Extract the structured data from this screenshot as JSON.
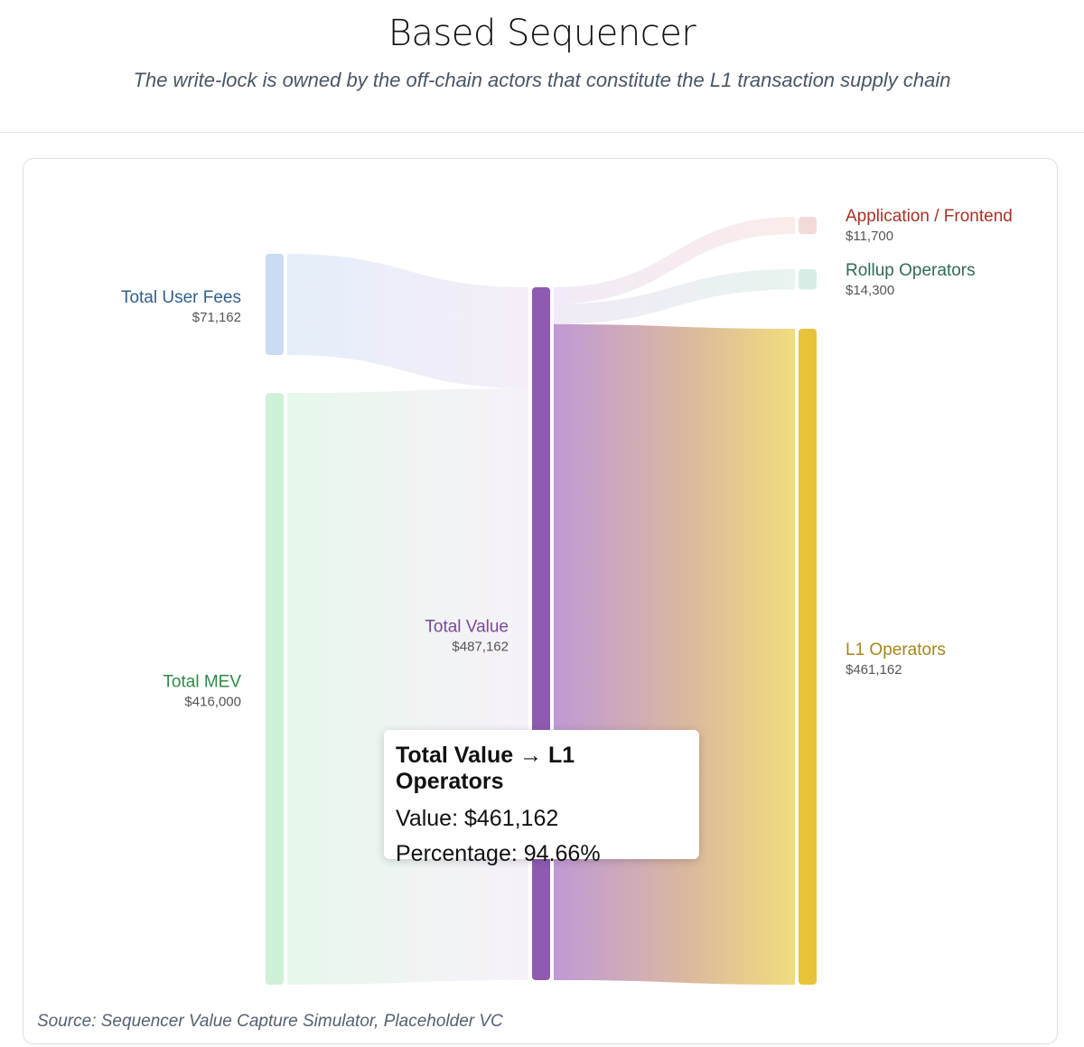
{
  "title": "Based Sequencer",
  "subtitle": "The write-lock is owned by the off-chain actors that constitute the L1 transaction supply chain",
  "source": "Source: Sequencer Value Capture Simulator, Placeholder VC",
  "chart_data": {
    "type": "sankey",
    "nodes": [
      {
        "id": "fees",
        "name": "Total User Fees",
        "value": 71162,
        "value_label": "$71,162",
        "color": "#c9dcf3",
        "label_color": "#2e5f8f"
      },
      {
        "id": "mev",
        "name": "Total MEV",
        "value": 416000,
        "value_label": "$416,000",
        "color": "#cdf0d6",
        "label_color": "#2f8a45"
      },
      {
        "id": "total",
        "name": "Total Value",
        "value": 487162,
        "value_label": "$487,162",
        "color": "#8e5bb0",
        "label_color": "#7a4a96"
      },
      {
        "id": "app",
        "name": "Application / Frontend",
        "value": 11700,
        "value_label": "$11,700",
        "color": "#f3d9d7",
        "label_color": "#a83226"
      },
      {
        "id": "rollup",
        "name": "Rollup Operators",
        "value": 14300,
        "value_label": "$14,300",
        "color": "#d6ece4",
        "label_color": "#2f6b55"
      },
      {
        "id": "l1",
        "name": "L1 Operators",
        "value": 461162,
        "value_label": "$461,162",
        "color": "#e8c33a",
        "label_color": "#a8861a"
      }
    ],
    "links": [
      {
        "source": "fees",
        "target": "total",
        "value": 71162
      },
      {
        "source": "mev",
        "target": "total",
        "value": 416000
      },
      {
        "source": "total",
        "target": "app",
        "value": 11700
      },
      {
        "source": "total",
        "target": "rollup",
        "value": 14300
      },
      {
        "source": "total",
        "target": "l1",
        "value": 461162
      }
    ]
  },
  "tooltip": {
    "title": "Total Value → L1 Operators",
    "value_line": "Value: $461,162",
    "percentage_line": "Percentage: 94.66%"
  }
}
